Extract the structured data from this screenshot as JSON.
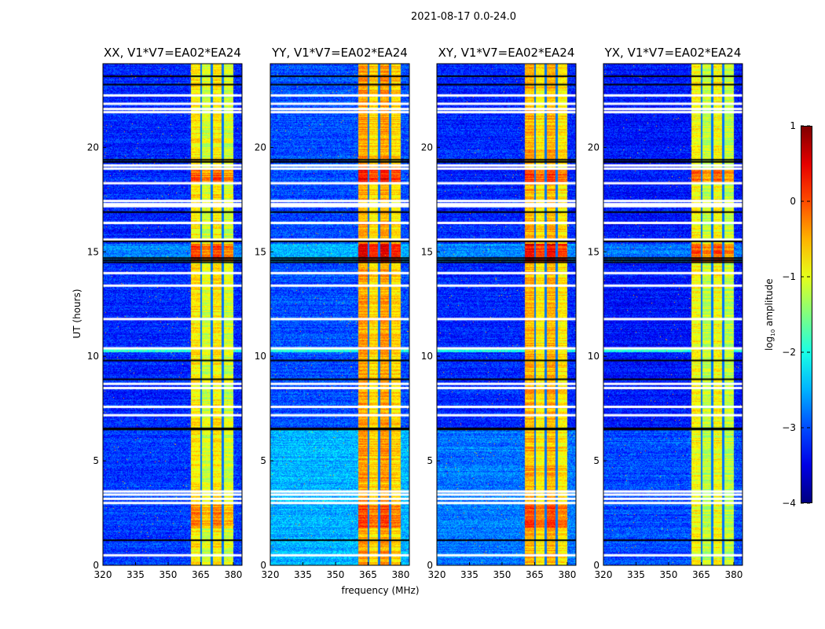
{
  "suptitle": "2021-08-17 0.0-24.0",
  "chart_data": {
    "type": "heatmap",
    "xlabel": "frequency (MHz)",
    "ylabel": "UT (hours)",
    "xlim": [
      320,
      384
    ],
    "ylim": [
      0,
      24
    ],
    "xticks": [
      320,
      335,
      350,
      365,
      380
    ],
    "yticks": [
      0,
      5,
      10,
      15,
      20
    ],
    "colorbar": {
      "label": "log10 amplitude",
      "label_main": "log",
      "label_sub": "10",
      "label_rest": " amplitude",
      "range": [
        -4,
        1
      ],
      "ticks": [
        "1",
        "0",
        "−1",
        "−2",
        "−3",
        "−4"
      ],
      "colormap": "jet"
    },
    "bright_band_mhz": [
      360.3,
      379.7
    ],
    "band_gaps_mhz": [
      365,
      370,
      375
    ],
    "flagged_white_hours": [
      0.5,
      3.0,
      3.2,
      3.4,
      3.55,
      7.2,
      7.6,
      8.5,
      8.7,
      10.4,
      11.8,
      13.4,
      14.0,
      15.6,
      16.4,
      17.2,
      17.3,
      17.45,
      18.3,
      19.0,
      19.15,
      21.7,
      21.85,
      22.1,
      22.5
    ],
    "flagged_black_hours": [
      1.2,
      6.5,
      6.55,
      8.9,
      9.8,
      14.5,
      14.6,
      14.7,
      15.5,
      16.9,
      19.3,
      19.4,
      23.0,
      23.4
    ],
    "panels": [
      {
        "title": "XX, V1*V7=EA02*EA24",
        "base_level": -3.2,
        "band_level": -1.1,
        "early_level": -3.1
      },
      {
        "title": "YY, V1*V7=EA02*EA24",
        "base_level": -3.0,
        "band_level": -0.7,
        "early_level": -2.5
      },
      {
        "title": "XY, V1*V7=EA02*EA24",
        "base_level": -3.2,
        "band_level": -0.8,
        "early_level": -2.8
      },
      {
        "title": "YX, V1*V7=EA02*EA24",
        "base_level": -3.3,
        "band_level": -1.2,
        "early_level": -3.0
      }
    ]
  }
}
